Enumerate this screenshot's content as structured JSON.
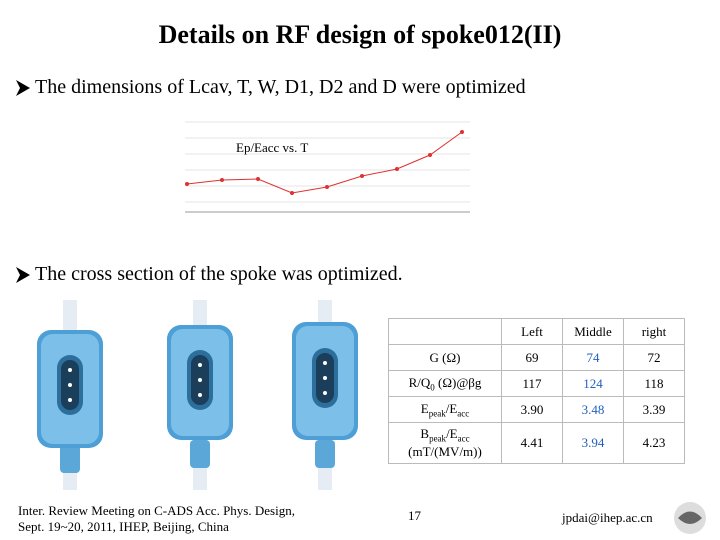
{
  "header": {
    "title": "Details on RF design of spoke012(II)"
  },
  "bullets": [
    "The dimensions of Lcav, T, W, D1, D2 and D were optimized",
    "The cross section of the spoke was optimized."
  ],
  "figure": {
    "label": "Ep/Eacc vs. T"
  },
  "table": {
    "columns": [
      "Left",
      "Middle",
      "right"
    ],
    "rows": [
      {
        "label": [
          {
            "text": "G (Ω)"
          }
        ],
        "cells": [
          "69",
          "74",
          "72"
        ]
      },
      {
        "label": [
          {
            "text": "R/Q"
          },
          {
            "text": "0",
            "sub": true
          },
          {
            "text": " (Ω)@βg"
          }
        ],
        "cells": [
          "117",
          "124",
          "118"
        ]
      },
      {
        "label": [
          {
            "text": "E"
          },
          {
            "text": "peak",
            "sub": true
          },
          {
            "text": "/E"
          },
          {
            "text": "acc",
            "sub": true
          }
        ],
        "cells": [
          "3.90",
          "3.48",
          "3.39"
        ]
      },
      {
        "label": [
          {
            "text": "B"
          },
          {
            "text": "peak",
            "sub": true
          },
          {
            "text": "/E"
          },
          {
            "text": "acc",
            "sub": true
          },
          {
            "text": "(mT/(MV/m))",
            "newline": true
          }
        ],
        "cells": [
          "4.41",
          "3.94",
          "4.23"
        ]
      }
    ]
  },
  "footer": {
    "event": [
      "Inter. Review Meeting on C-ADS Acc. Phys. Design,",
      "Sept. 19~20, 2011, IHEP, Beijing, China"
    ],
    "page": "17",
    "email": "jpdai@ihep.ac.cn"
  }
}
